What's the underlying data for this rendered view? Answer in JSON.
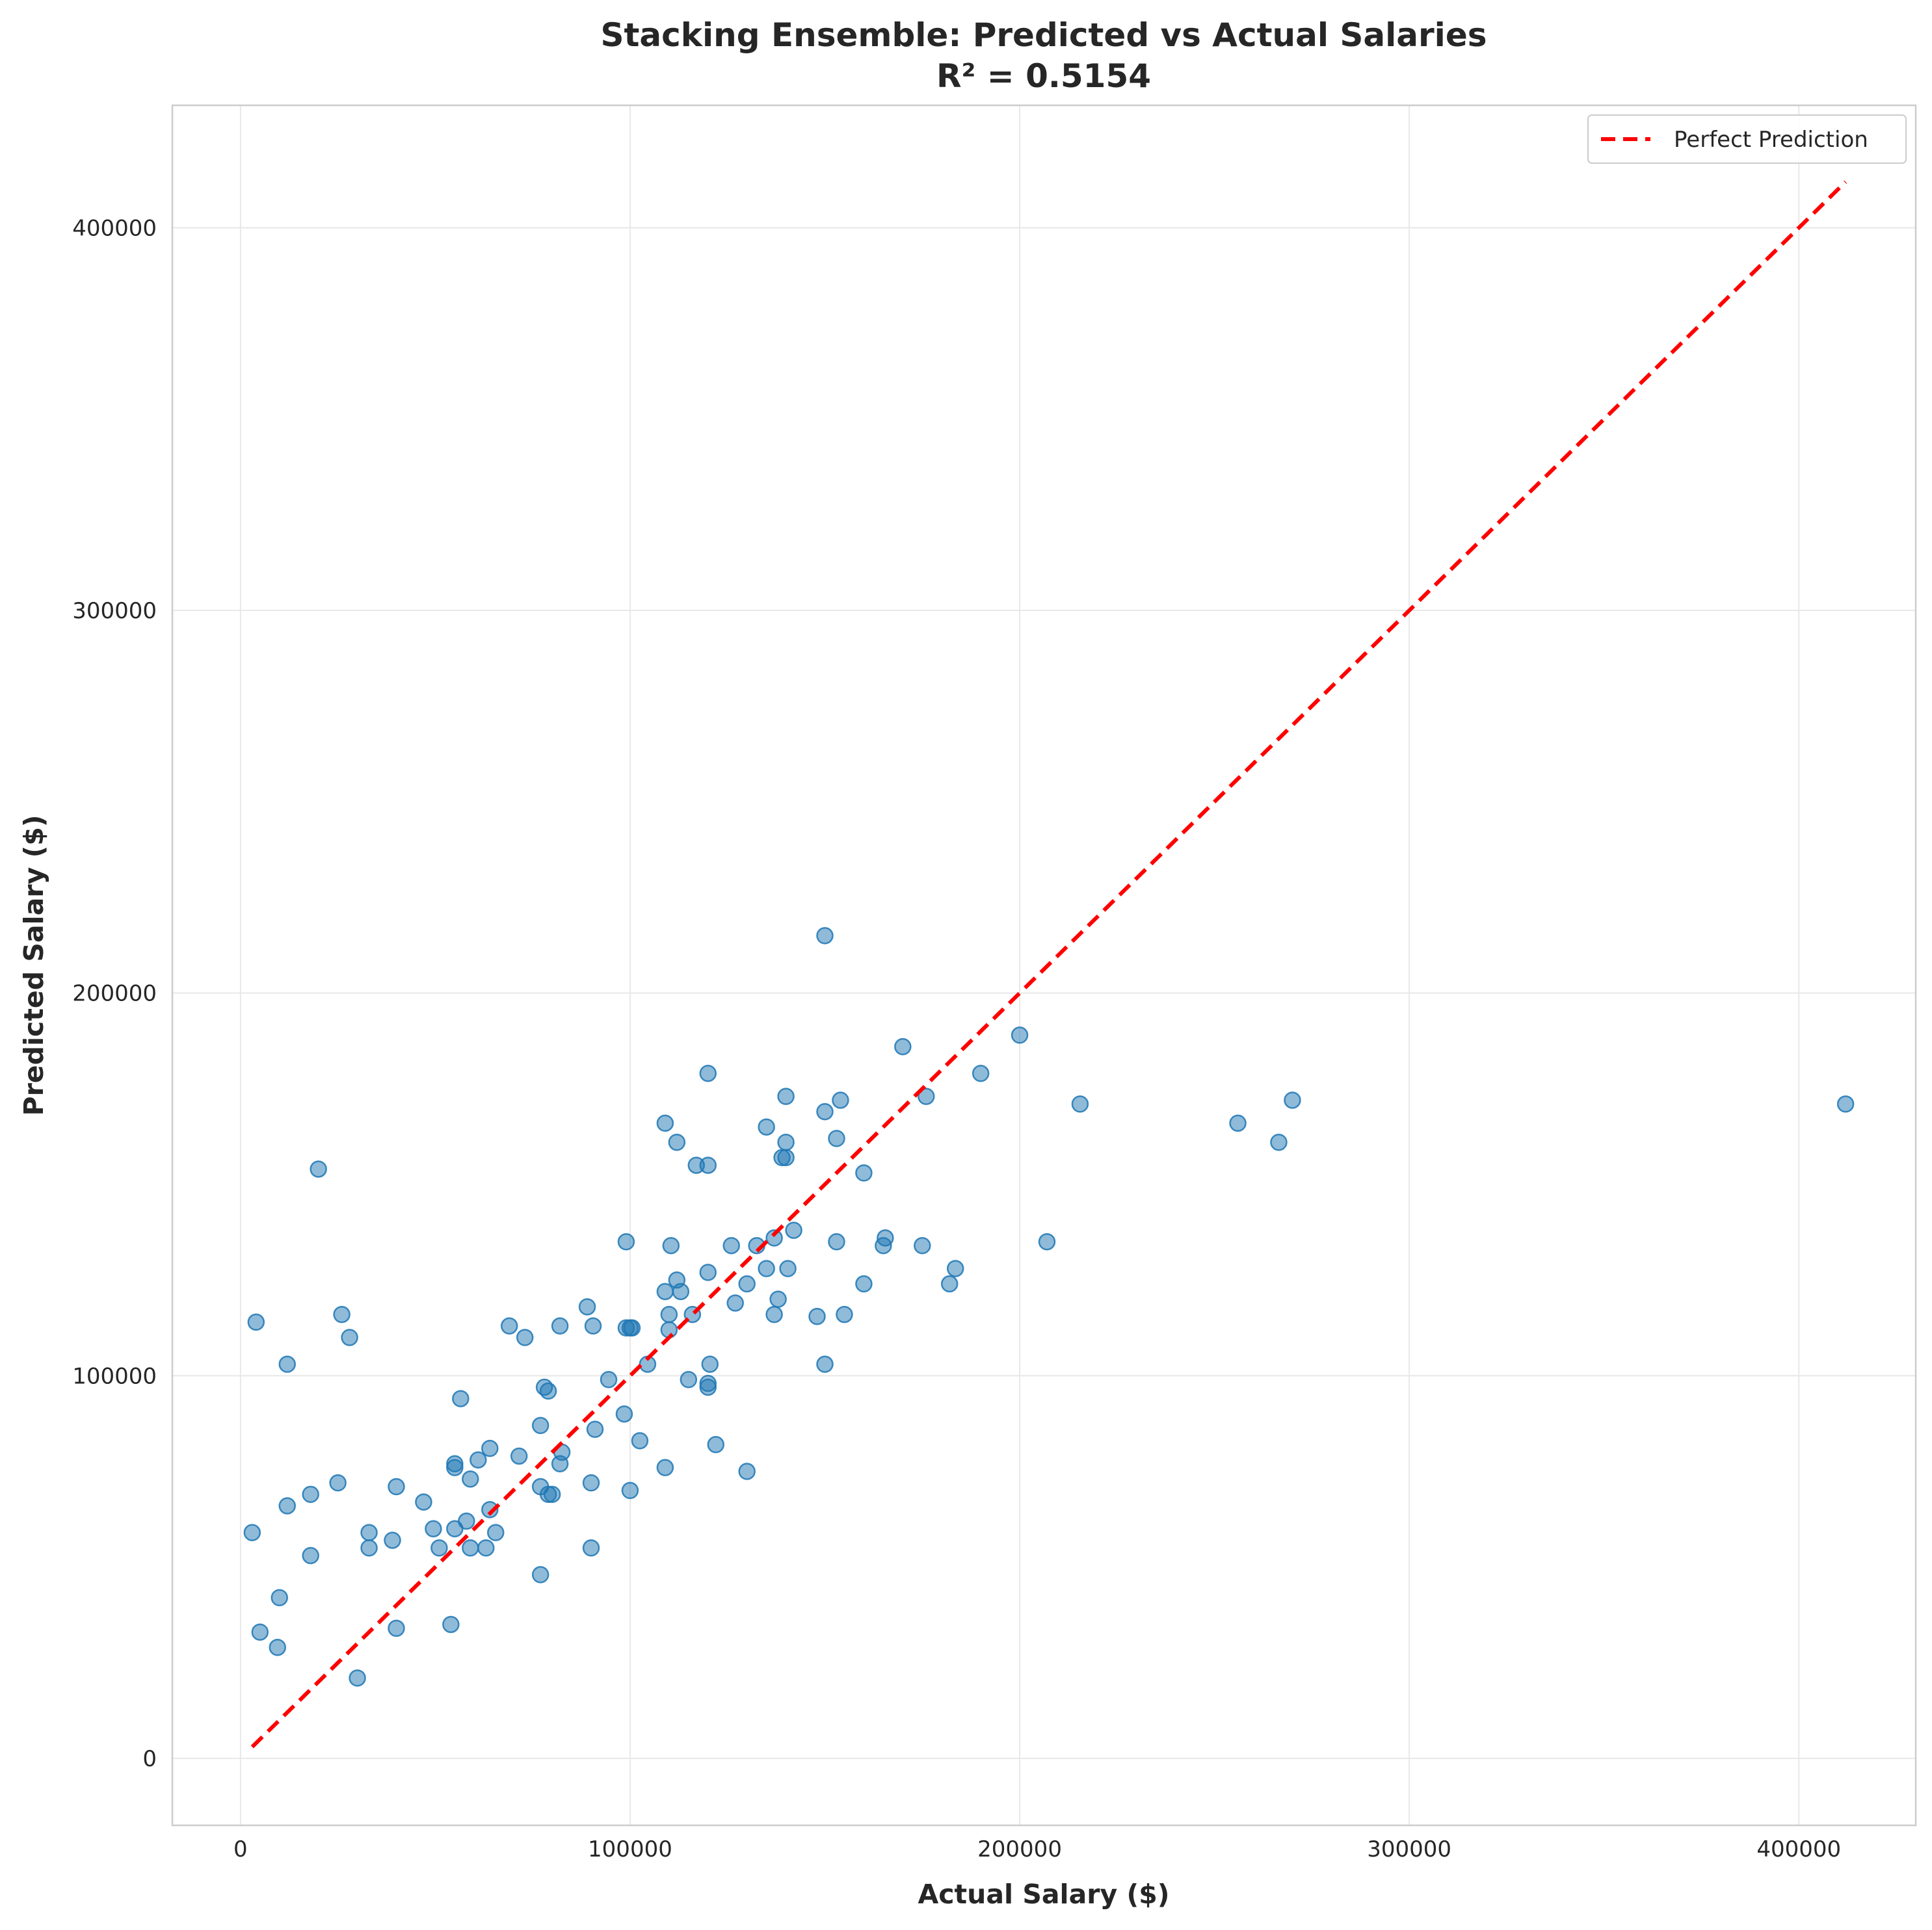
{
  "chart_data": {
    "type": "scatter",
    "title": "Stacking Ensemble: Predicted vs Actual Salaries",
    "subtitle": "R² = 0.5154",
    "xlabel": "Actual Salary ($)",
    "ylabel": "Predicted Salary ($)",
    "xlim": [
      -17500,
      430000
    ],
    "ylim": [
      -17500,
      432000
    ],
    "xticks": [
      0,
      100000,
      200000,
      300000,
      400000
    ],
    "yticks": [
      0,
      100000,
      200000,
      300000,
      400000
    ],
    "xtick_labels": [
      "0",
      "100000",
      "200000",
      "300000",
      "400000"
    ],
    "ytick_labels": [
      "0",
      "100000",
      "200000",
      "300000",
      "400000"
    ],
    "grid": true,
    "legend": {
      "position": "top-right",
      "entries": [
        "Perfect Prediction"
      ]
    },
    "colors": {
      "points": "#1f77b4",
      "reference_line": "#ff0000"
    },
    "reference_line": {
      "name": "Perfect Prediction",
      "style": "dashed",
      "x": [
        3000,
        412000
      ],
      "y": [
        3000,
        412000
      ]
    },
    "points": [
      [
        4000,
        114000
      ],
      [
        12000,
        103000
      ],
      [
        20000,
        154000
      ],
      [
        26000,
        116000
      ],
      [
        28000,
        110000
      ],
      [
        3000,
        59000
      ],
      [
        5000,
        33000
      ],
      [
        9500,
        29000
      ],
      [
        10000,
        42000
      ],
      [
        12000,
        66000
      ],
      [
        18000,
        53000
      ],
      [
        18000,
        69000
      ],
      [
        25000,
        72000
      ],
      [
        30000,
        21000
      ],
      [
        33000,
        59000
      ],
      [
        33000,
        55000
      ],
      [
        39000,
        57000
      ],
      [
        40000,
        71000
      ],
      [
        40000,
        34000
      ],
      [
        47000,
        67000
      ],
      [
        49500,
        60000
      ],
      [
        51000,
        55000
      ],
      [
        54000,
        35000
      ],
      [
        55000,
        76000
      ],
      [
        55000,
        77000
      ],
      [
        55000,
        60000
      ],
      [
        56500,
        94000
      ],
      [
        58000,
        62000
      ],
      [
        59000,
        73000
      ],
      [
        59000,
        55000
      ],
      [
        61000,
        78000
      ],
      [
        63000,
        55000
      ],
      [
        64000,
        65000
      ],
      [
        64000,
        81000
      ],
      [
        65500,
        59000
      ],
      [
        69000,
        113000
      ],
      [
        71500,
        79000
      ],
      [
        73000,
        110000
      ],
      [
        77000,
        87000
      ],
      [
        77000,
        71000
      ],
      [
        77000,
        48000
      ],
      [
        78000,
        97000
      ],
      [
        79000,
        96000
      ],
      [
        79000,
        69000
      ],
      [
        80000,
        69000
      ],
      [
        82000,
        113000
      ],
      [
        82000,
        77000
      ],
      [
        82500,
        80000
      ],
      [
        89000,
        118000
      ],
      [
        90000,
        72000
      ],
      [
        90000,
        55000
      ],
      [
        90500,
        113000
      ],
      [
        91000,
        86000
      ],
      [
        94500,
        99000
      ],
      [
        98500,
        90000
      ],
      [
        99000,
        135000
      ],
      [
        99000,
        112500
      ],
      [
        100000,
        112500
      ],
      [
        100500,
        112500
      ],
      [
        100000,
        70000
      ],
      [
        102500,
        83000
      ],
      [
        104500,
        103000
      ],
      [
        109000,
        166000
      ],
      [
        109000,
        122000
      ],
      [
        109000,
        76000
      ],
      [
        110000,
        116000
      ],
      [
        110000,
        112000
      ],
      [
        110500,
        134000
      ],
      [
        112000,
        161000
      ],
      [
        112000,
        125000
      ],
      [
        113000,
        122000
      ],
      [
        115000,
        99000
      ],
      [
        116000,
        116000
      ],
      [
        117000,
        155000
      ],
      [
        120000,
        179000
      ],
      [
        120000,
        155000
      ],
      [
        120000,
        127000
      ],
      [
        120000,
        98000
      ],
      [
        120000,
        97000
      ],
      [
        120500,
        103000
      ],
      [
        122000,
        82000
      ],
      [
        126000,
        134000
      ],
      [
        127000,
        119000
      ],
      [
        130000,
        124000
      ],
      [
        130000,
        75000
      ],
      [
        132500,
        134000
      ],
      [
        135000,
        165000
      ],
      [
        135000,
        128000
      ],
      [
        137000,
        116000
      ],
      [
        137000,
        136000
      ],
      [
        138000,
        120000
      ],
      [
        139000,
        157000
      ],
      [
        140000,
        173000
      ],
      [
        140000,
        161000
      ],
      [
        140000,
        157000
      ],
      [
        140500,
        128000
      ],
      [
        142000,
        138000
      ],
      [
        148000,
        115500
      ],
      [
        150000,
        169000
      ],
      [
        150000,
        215000
      ],
      [
        150000,
        103000
      ],
      [
        153000,
        162000
      ],
      [
        153000,
        135000
      ],
      [
        154000,
        172000
      ],
      [
        155000,
        116000
      ],
      [
        160000,
        153000
      ],
      [
        160000,
        124000
      ],
      [
        165000,
        134000
      ],
      [
        165500,
        136000
      ],
      [
        170000,
        186000
      ],
      [
        175000,
        134000
      ],
      [
        176000,
        173000
      ],
      [
        182000,
        124000
      ],
      [
        183500,
        128000
      ],
      [
        190000,
        179000
      ],
      [
        200000,
        189000
      ],
      [
        207000,
        135000
      ],
      [
        215500,
        171000
      ],
      [
        256000,
        166000
      ],
      [
        266500,
        161000
      ],
      [
        270000,
        172000
      ],
      [
        412000,
        171000
      ]
    ]
  }
}
